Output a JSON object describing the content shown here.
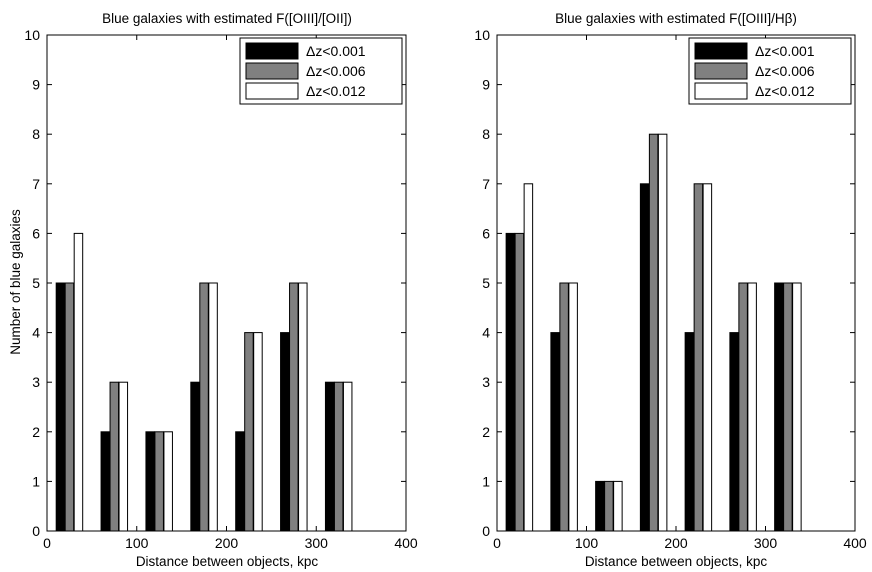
{
  "chart_data": [
    {
      "type": "bar",
      "title": "Blue galaxies with estimated F([OIII]/[OII])",
      "xlabel": "Distance between objects, kpc",
      "ylabel": "Number of blue galaxies",
      "xlim": [
        0,
        400
      ],
      "ylim": [
        0,
        10
      ],
      "xticks": [
        0,
        100,
        200,
        300,
        400
      ],
      "yticks": [
        0,
        1,
        2,
        3,
        4,
        5,
        6,
        7,
        8,
        9,
        10
      ],
      "x": [
        25,
        75,
        125,
        175,
        225,
        275,
        325
      ],
      "series": [
        {
          "name": "Δz<0.001",
          "color": "#000000",
          "values": [
            5,
            2,
            2,
            3,
            2,
            4,
            3
          ]
        },
        {
          "name": "Δz<0.006",
          "color": "#808080",
          "values": [
            5,
            3,
            2,
            5,
            4,
            5,
            3
          ]
        },
        {
          "name": "Δz<0.012",
          "color": "#ffffff",
          "values": [
            6,
            3,
            2,
            5,
            4,
            5,
            3
          ]
        }
      ],
      "legend_position": "top-right",
      "grid": false
    },
    {
      "type": "bar",
      "title": "Blue galaxies with estimated F([OIII]/Hβ)",
      "xlabel": "Distance between objects, kpc",
      "ylabel": "",
      "xlim": [
        0,
        400
      ],
      "ylim": [
        0,
        10
      ],
      "xticks": [
        0,
        100,
        200,
        300,
        400
      ],
      "yticks": [
        0,
        1,
        2,
        3,
        4,
        5,
        6,
        7,
        8,
        9,
        10
      ],
      "x": [
        25,
        75,
        125,
        175,
        225,
        275,
        325
      ],
      "series": [
        {
          "name": "Δz<0.001",
          "color": "#000000",
          "values": [
            6,
            4,
            1,
            7,
            4,
            4,
            5
          ]
        },
        {
          "name": "Δz<0.006",
          "color": "#808080",
          "values": [
            6,
            5,
            1,
            8,
            7,
            5,
            5
          ]
        },
        {
          "name": "Δz<0.012",
          "color": "#ffffff",
          "values": [
            7,
            5,
            1,
            8,
            7,
            5,
            5
          ]
        }
      ],
      "legend_position": "top-right",
      "grid": false
    }
  ]
}
